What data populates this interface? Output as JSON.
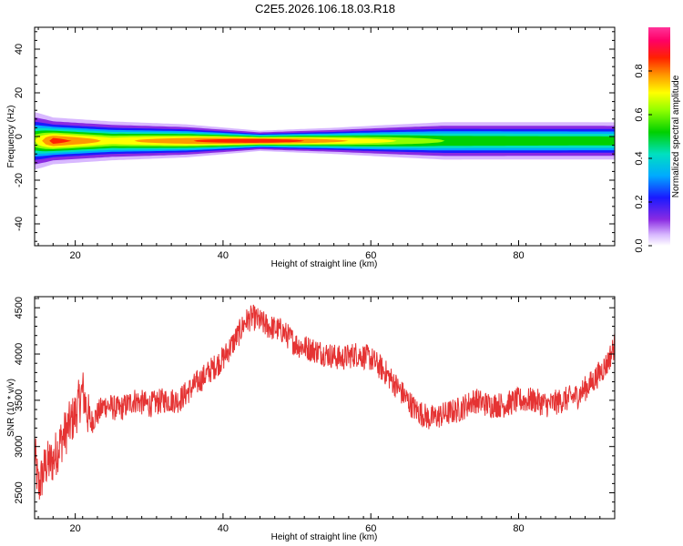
{
  "title": "C2E5.2026.106.18.03.R18",
  "colors": {
    "snr_line": "#e53333",
    "background": "#ffffff",
    "frame": "#000000"
  },
  "chart_data": [
    {
      "type": "heatmap",
      "title": "C2E5.2026.106.18.03.R18",
      "xlabel": "Height of straight line (km)",
      "ylabel": "Frequency (Hz)",
      "xlim": [
        14.5,
        93
      ],
      "ylim": [
        -50,
        50
      ],
      "xticks": [
        20,
        40,
        60,
        80
      ],
      "yticks": [
        -40,
        -20,
        0,
        20,
        40
      ],
      "xtick_labels": [
        "20",
        "40",
        "60",
        "80"
      ],
      "ytick_labels": [
        "-40",
        "-20",
        "0",
        "20",
        "40"
      ],
      "colorbar": {
        "label": "Normalized spectral amplitude",
        "range": [
          0,
          1
        ],
        "ticks": [
          "0.0",
          "0.2",
          "0.4",
          "0.6",
          "0.8"
        ],
        "colormap": "rainbow"
      },
      "band": {
        "center_frequency_hz": -2,
        "description_profile": [
          {
            "x": 14.5,
            "width_hz": 9,
            "peak": 0.7
          },
          {
            "x": 17,
            "width_hz": 7,
            "peak": 0.9
          },
          {
            "x": 25,
            "width_hz": 6,
            "peak": 0.75
          },
          {
            "x": 35,
            "width_hz": 5,
            "peak": 0.85
          },
          {
            "x": 45,
            "width_hz": 3,
            "peak": 0.95
          },
          {
            "x": 55,
            "width_hz": 4,
            "peak": 0.8
          },
          {
            "x": 70,
            "width_hz": 6,
            "peak": 0.62
          },
          {
            "x": 93,
            "width_hz": 6,
            "peak": 0.6
          }
        ]
      },
      "grid": false
    },
    {
      "type": "line",
      "xlabel": "Height of straight line (km)",
      "ylabel": "SNR (10 * v/v)",
      "xlim": [
        14.5,
        93
      ],
      "ylim": [
        2220,
        4620
      ],
      "xticks": [
        20,
        40,
        60,
        80
      ],
      "yticks": [
        2500,
        3000,
        3500,
        4000,
        4500
      ],
      "xtick_labels": [
        "20",
        "40",
        "60",
        "80"
      ],
      "ytick_labels": [
        "2500",
        "3000",
        "3500",
        "4000",
        "4500"
      ],
      "series": [
        {
          "x": [
            14.5,
            15,
            16,
            17,
            18,
            19,
            20,
            21,
            22,
            24,
            26,
            28,
            30,
            32,
            34,
            36,
            38,
            40,
            42,
            43,
            44,
            45,
            46,
            48,
            50,
            52,
            54,
            56,
            58,
            60,
            62,
            64,
            66,
            68,
            70,
            72,
            74,
            76,
            78,
            80,
            82,
            84,
            86,
            88,
            90,
            92,
            93
          ],
          "values": [
            2950,
            2550,
            2800,
            2850,
            3050,
            3200,
            3350,
            3600,
            3250,
            3450,
            3400,
            3500,
            3450,
            3500,
            3500,
            3650,
            3800,
            3950,
            4200,
            4350,
            4400,
            4350,
            4300,
            4250,
            4100,
            4050,
            4000,
            3950,
            4000,
            3950,
            3800,
            3600,
            3400,
            3300,
            3350,
            3400,
            3500,
            3450,
            3450,
            3500,
            3500,
            3450,
            3500,
            3550,
            3700,
            3900,
            4100
          ]
        }
      ],
      "grid": false
    }
  ]
}
